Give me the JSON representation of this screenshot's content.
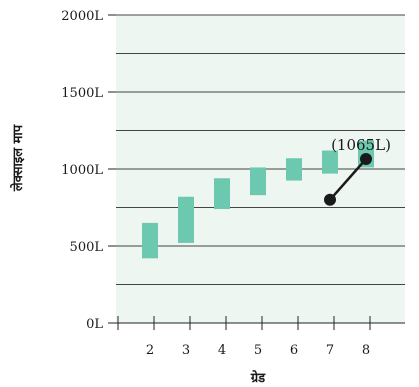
{
  "chart_data": {
    "type": "bar",
    "xlabel": "ग्रेड",
    "ylabel": "लेक्साइल माप",
    "x_ticks": [
      "2",
      "3",
      "4",
      "5",
      "6",
      "7",
      "8"
    ],
    "y_ticks": [
      "0L",
      "500L",
      "1000L",
      "1500L",
      "2000L"
    ],
    "ylim": [
      0,
      2000
    ],
    "grid": true,
    "colors": {
      "plot_background": "#eef6f1",
      "bar": "#6cc9b0",
      "gridline": "#444444",
      "line": "#1a1a1a"
    },
    "ranges": [
      {
        "grade": "2",
        "low": 420,
        "high": 650
      },
      {
        "grade": "3",
        "low": 520,
        "high": 820
      },
      {
        "grade": "4",
        "low": 740,
        "high": 940
      },
      {
        "grade": "5",
        "low": 830,
        "high": 1010
      },
      {
        "grade": "6",
        "low": 925,
        "high": 1070
      },
      {
        "grade": "7",
        "low": 970,
        "high": 1120
      },
      {
        "grade": "8",
        "low": 1010,
        "high": 1185
      }
    ],
    "line_points": [
      {
        "grade": "7",
        "value": 800
      },
      {
        "grade": "8",
        "value": 1065
      }
    ],
    "annotation": "(1065L)"
  }
}
